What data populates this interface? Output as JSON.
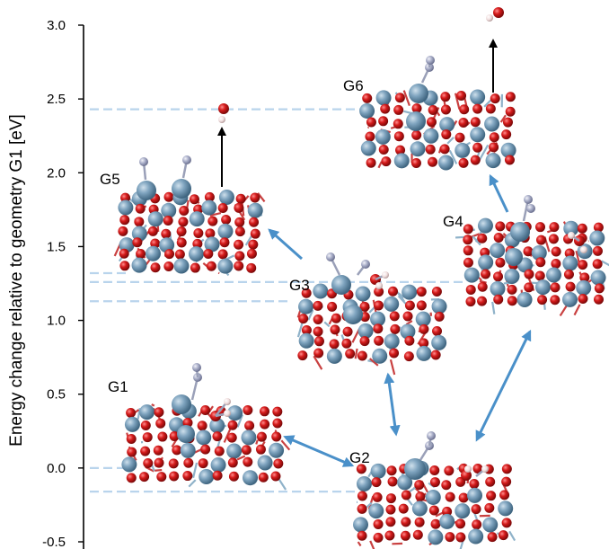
{
  "y_axis": {
    "label": "Energy change relative to geometry G1 [eV]",
    "min": -0.5,
    "max": 3.0,
    "ticks": [
      "3.0",
      "2.5",
      "2.0",
      "1.5",
      "1.0",
      "0.5",
      "0.0",
      "-0.5"
    ]
  },
  "energy_levels": [
    2.43,
    1.32,
    1.26,
    1.13,
    0.0,
    -0.16
  ],
  "geometries": [
    {
      "id": "G1",
      "label": "G1"
    },
    {
      "id": "G2",
      "label": "G2"
    },
    {
      "id": "G3",
      "label": "G3"
    },
    {
      "id": "G4",
      "label": "G4"
    },
    {
      "id": "G5",
      "label": "G5"
    },
    {
      "id": "G6",
      "label": "G6"
    }
  ],
  "transitions": [
    {
      "from": "G1",
      "to": "G2",
      "type": "reversible"
    },
    {
      "from": "G2",
      "to": "G3",
      "type": "reversible"
    },
    {
      "from": "G2",
      "to": "G4",
      "type": "reversible"
    },
    {
      "from": "G3",
      "to": "G5",
      "type": "forward"
    },
    {
      "from": "G4",
      "to": "G6",
      "type": "forward"
    }
  ],
  "colors": {
    "level_line": "#b9d4ec",
    "transition_arrow": "#4a90c9",
    "desorption_arrow": "#000000",
    "metal_atom": "#6f96b3",
    "oxygen_atom": "#d21c1c",
    "nitrogen_atom": "#a8aec8",
    "hydrogen_atom": "#f0e2e2"
  }
}
